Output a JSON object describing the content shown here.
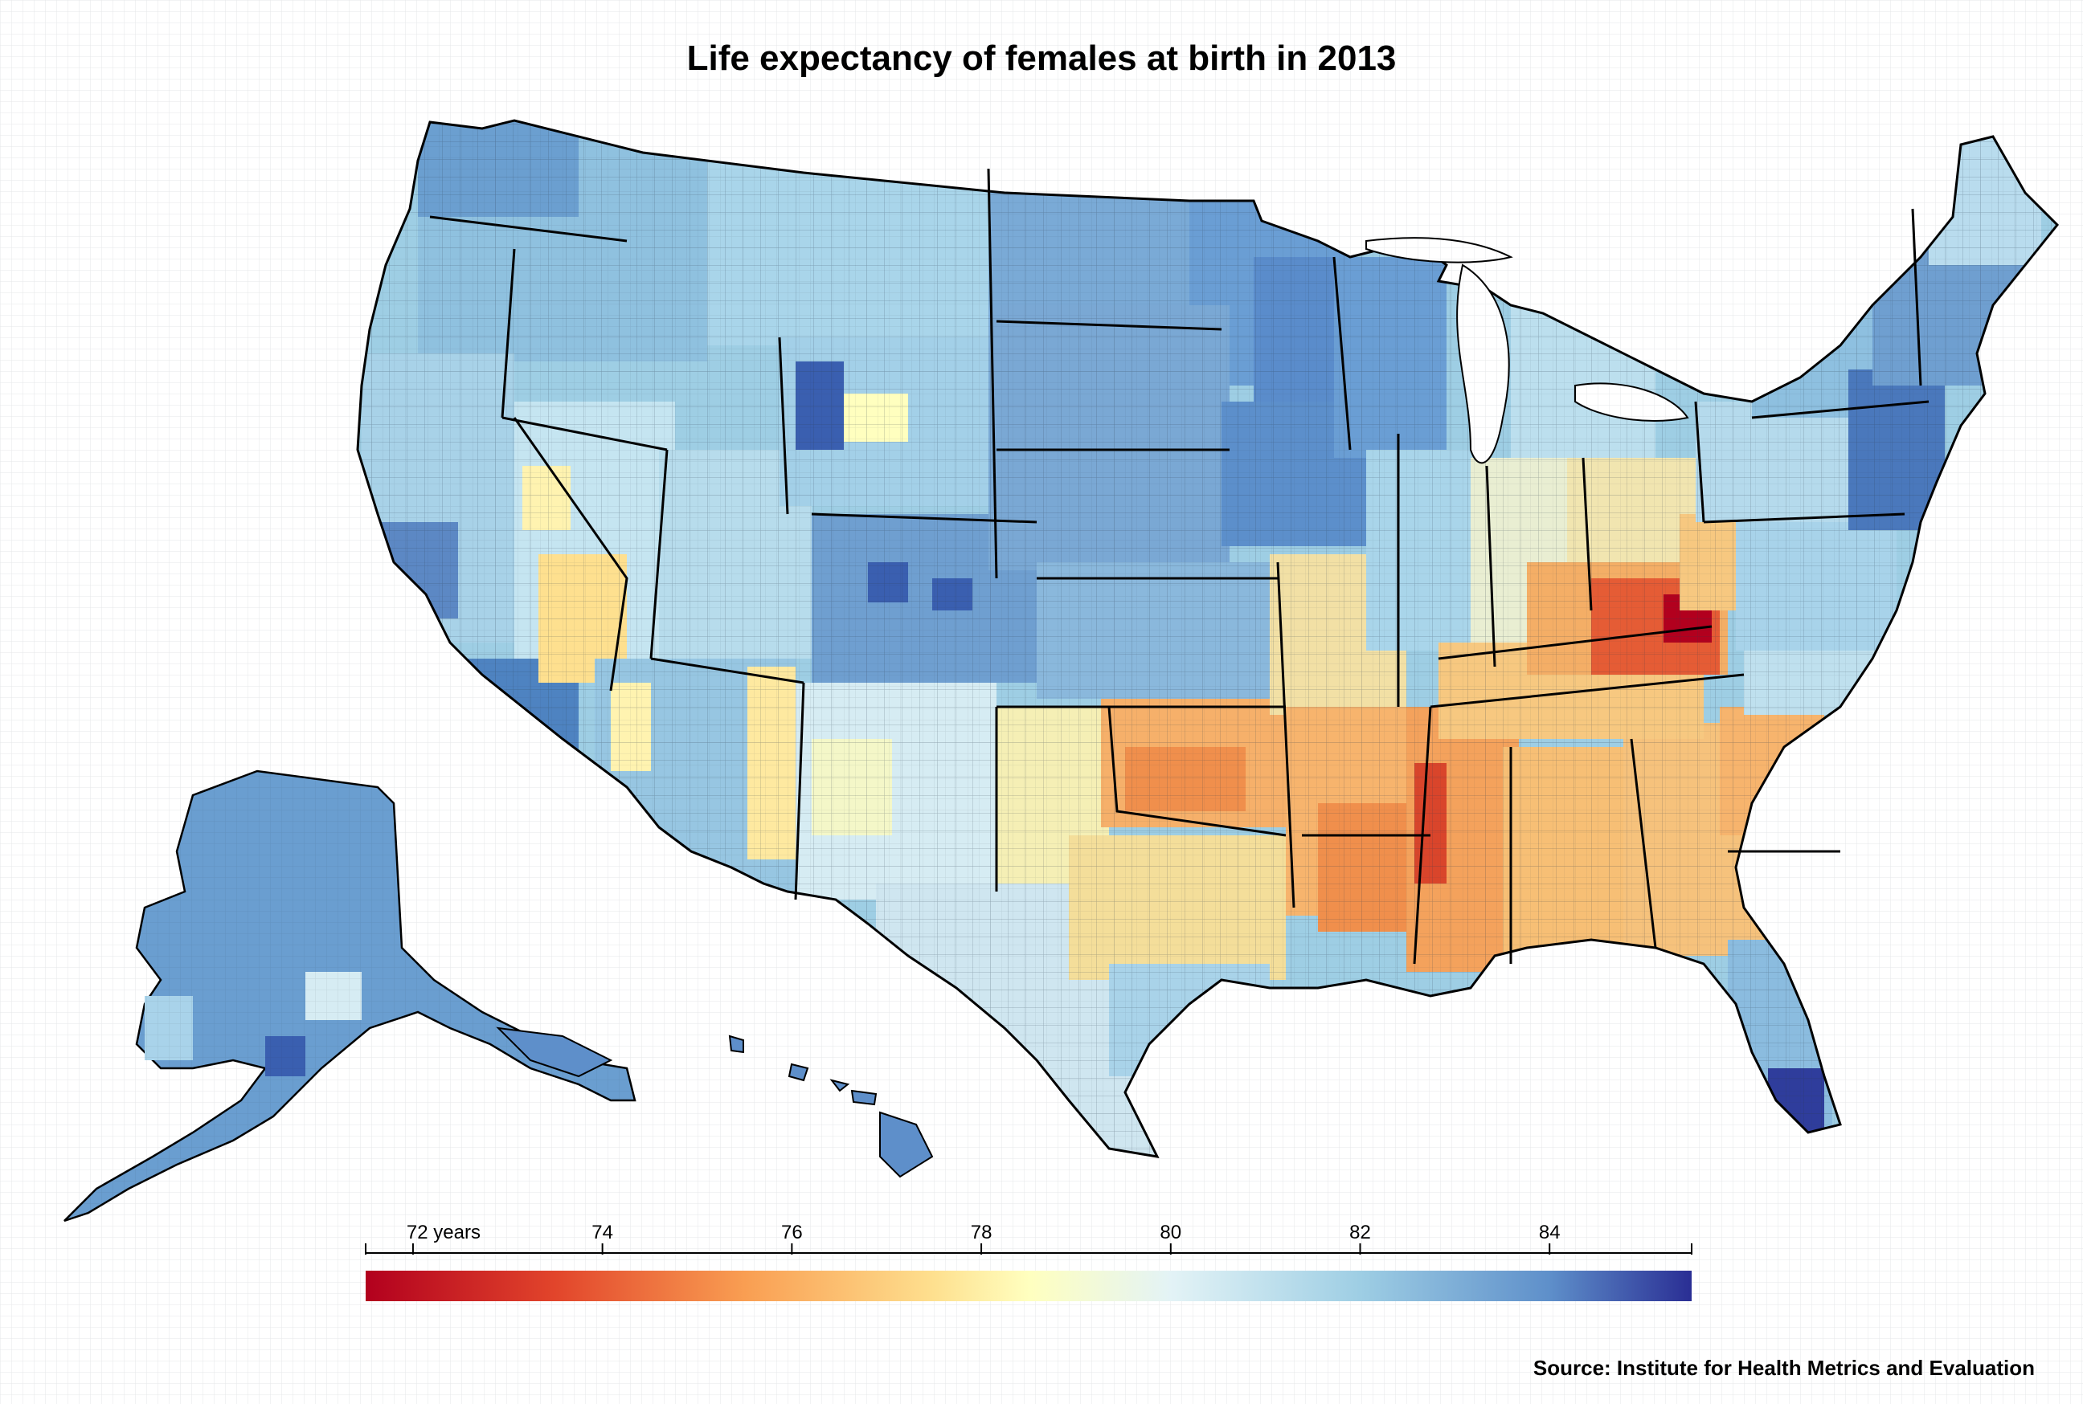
{
  "title": "Life expectancy of females at birth in 2013",
  "source": "Source: Institute for Health Metrics and Evaluation",
  "legend": {
    "min": 71.5,
    "max": 85.5,
    "tick_labels": [
      {
        "value": 72,
        "label": "72 years"
      },
      {
        "value": 74,
        "label": "74"
      },
      {
        "value": 76,
        "label": "76"
      },
      {
        "value": 78,
        "label": "78"
      },
      {
        "value": 80,
        "label": "80"
      },
      {
        "value": 82,
        "label": "82"
      },
      {
        "value": 84,
        "label": "84"
      }
    ],
    "color_stops": [
      {
        "value": 71.5,
        "color": "#b2001e"
      },
      {
        "value": 73.5,
        "color": "#e2452b"
      },
      {
        "value": 75.5,
        "color": "#f99e52"
      },
      {
        "value": 77.5,
        "color": "#fee08f"
      },
      {
        "value": 78.5,
        "color": "#ffffbf"
      },
      {
        "value": 80.0,
        "color": "#e3f3f6"
      },
      {
        "value": 82.0,
        "color": "#9ecee4"
      },
      {
        "value": 84.0,
        "color": "#5e8fca"
      },
      {
        "value": 85.5,
        "color": "#2a2e94"
      }
    ]
  },
  "colors": {
    "border": "#000000",
    "county_line": "#2b3a4a"
  }
}
